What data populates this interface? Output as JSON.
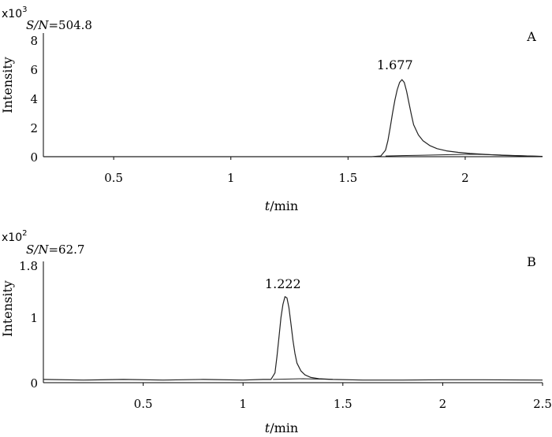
{
  "chart_data": [
    {
      "type": "line",
      "panel_label": "A",
      "scale_base": "x10",
      "scale_exp": "3",
      "sn_label": "S/N",
      "sn_value": "=504.8",
      "ylabel": "Intensity",
      "xlabel_var": "t",
      "xlabel_unit": "/min",
      "xlim": [
        0.2,
        2.33
      ],
      "ylim": [
        0,
        8.5
      ],
      "xticks": [
        {
          "v": 0.5,
          "label": "0.5"
        },
        {
          "v": 1,
          "label": "1"
        },
        {
          "v": 1.5,
          "label": "1.5"
        },
        {
          "v": 2,
          "label": "2"
        }
      ],
      "yticks": [
        {
          "v": 0,
          "label": "0"
        },
        {
          "v": 2,
          "label": "2"
        },
        {
          "v": 4,
          "label": "4"
        },
        {
          "v": 6,
          "label": "6"
        },
        {
          "v": 8,
          "label": "8"
        }
      ],
      "peak_label": "1.677",
      "peak_label_pos": [
        1.7,
        6.0
      ],
      "series": [
        {
          "x": [
            0.2,
            0.6,
            0.9,
            1.2,
            1.4,
            1.6,
            1.64,
            1.66,
            1.67,
            1.68,
            1.69,
            1.7,
            1.71,
            1.72,
            1.73,
            1.74,
            1.75,
            1.76,
            1.77,
            1.78,
            1.8,
            1.82,
            1.85,
            1.88,
            1.92,
            1.97,
            2.02,
            2.08,
            2.15,
            2.33
          ],
          "y": [
            0.0,
            0.0,
            0.0,
            0.0,
            0.0,
            0.0,
            0.05,
            0.45,
            1.1,
            2.0,
            3.0,
            3.9,
            4.6,
            5.1,
            5.3,
            5.1,
            4.5,
            3.7,
            2.9,
            2.2,
            1.5,
            1.1,
            0.75,
            0.55,
            0.4,
            0.3,
            0.22,
            0.16,
            0.1,
            0.02
          ]
        },
        {
          "x": [
            1.66,
            1.8,
            2.0,
            2.05,
            2.15,
            2.33
          ],
          "y": [
            0.05,
            0.1,
            0.16,
            0.16,
            0.12,
            0.02
          ]
        }
      ]
    },
    {
      "type": "line",
      "panel_label": "B",
      "scale_base": "x10",
      "scale_exp": "2",
      "sn_label": "S/N",
      "sn_value": "=62.7",
      "ylabel": "Intensity",
      "xlabel_var": "t",
      "xlabel_unit": "/min",
      "xlim": [
        0.0,
        2.5
      ],
      "ylim": [
        0,
        1.86
      ],
      "xticks": [
        {
          "v": 0.5,
          "label": "0.5"
        },
        {
          "v": 1,
          "label": "1"
        },
        {
          "v": 1.5,
          "label": "1.5"
        },
        {
          "v": 2,
          "label": "2"
        },
        {
          "v": 2.5,
          "label": "2.5"
        }
      ],
      "yticks": [
        {
          "v": 0,
          "label": "0"
        },
        {
          "v": 1,
          "label": "1"
        },
        {
          "v": 1.8,
          "label": "1.8"
        }
      ],
      "peak_label": "1.222",
      "peak_label_pos": [
        1.2,
        1.45
      ],
      "series": [
        {
          "x": [
            0.0,
            0.2,
            0.4,
            0.6,
            0.8,
            1.0,
            1.1,
            1.14,
            1.16,
            1.17,
            1.18,
            1.19,
            1.2,
            1.21,
            1.22,
            1.23,
            1.24,
            1.25,
            1.26,
            1.27,
            1.29,
            1.31,
            1.34,
            1.38,
            1.45,
            1.6,
            1.8,
            2.0,
            2.2,
            2.5
          ],
          "y": [
            0.05,
            0.04,
            0.05,
            0.04,
            0.05,
            0.04,
            0.05,
            0.05,
            0.15,
            0.4,
            0.7,
            1.0,
            1.2,
            1.32,
            1.3,
            1.15,
            0.9,
            0.65,
            0.45,
            0.3,
            0.18,
            0.12,
            0.08,
            0.06,
            0.05,
            0.04,
            0.04,
            0.045,
            0.045,
            0.04
          ]
        },
        {
          "x": [
            1.15,
            1.3,
            1.45
          ],
          "y": [
            0.05,
            0.06,
            0.05
          ]
        }
      ]
    }
  ]
}
